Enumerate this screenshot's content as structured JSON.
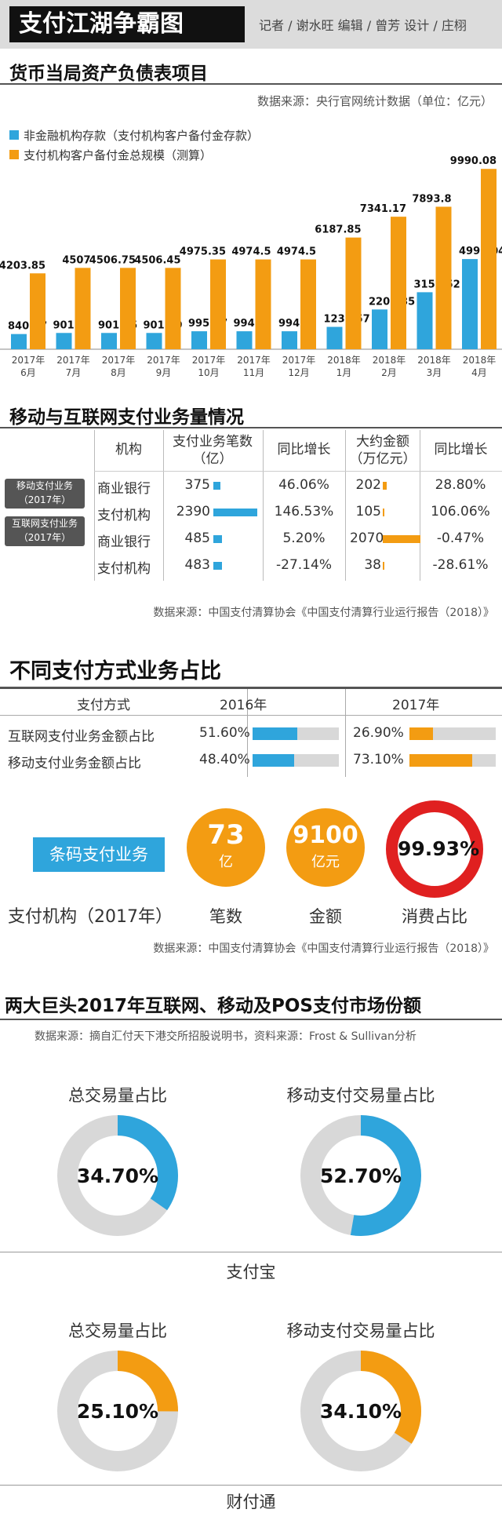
{
  "header": {
    "title": "支付江湖争霸图",
    "credits": "记者 / 谢水旺   编辑 / 曾芳   设计 / 庄栩"
  },
  "section1": {
    "title": "货币当局资产负债表项目",
    "source": "数据来源：央行官网统计数据（单位：亿元）"
  },
  "section2": {
    "title": "移动与互联网支付业务量情况",
    "headers": {
      "org": "机构",
      "count": "支付业务笔数（亿）",
      "count_growth": "同比增长",
      "amount": "大约金额（万亿元）",
      "amount_growth": "同比增长"
    },
    "tags": {
      "mobile": "移动支付业务（2017年）",
      "internet": "互联网支付业务（2017年）"
    },
    "rows": [
      {
        "org": "商业银行",
        "count": "375",
        "count_growth": "46.06%",
        "amount": "202",
        "amount_growth": "28.80%"
      },
      {
        "org": "支付机构",
        "count": "2390",
        "count_growth": "146.53%",
        "amount": "105",
        "amount_growth": "106.06%"
      },
      {
        "org": "商业银行",
        "count": "485",
        "count_growth": "5.20%",
        "amount": "2070",
        "amount_growth": "-0.47%"
      },
      {
        "org": "支付机构",
        "count": "483",
        "count_growth": "-27.14%",
        "amount": "38",
        "amount_growth": "-28.61%"
      }
    ],
    "source": "数据来源：中国支付清算协会《中国支付清算行业运行报告（2018）》"
  },
  "section3": {
    "title": "不同支付方式业务占比",
    "col_header": "支付方式",
    "years": [
      "2016年",
      "2017年"
    ],
    "rows": [
      {
        "label": "互联网支付业务金额占比",
        "v2016": "51.60%",
        "v2017": "26.90%"
      },
      {
        "label": "移动支付业务金额占比",
        "v2016": "48.40%",
        "v2017": "73.10%"
      }
    ],
    "barcode_label": "条码支付业务",
    "org_year_label": "支付机构（2017年）",
    "count_value": "73",
    "count_unit": "亿",
    "count_caption": "笔数",
    "amount_value": "9100",
    "amount_unit": "亿元",
    "amount_caption": "金额",
    "consumption_value": "99.93%",
    "consumption_caption": "消费占比",
    "source": "数据来源：中国支付清算协会《中国支付清算行业运行报告（2018）》"
  },
  "section4": {
    "title": "两大巨头2017年互联网、移动及POS支付市场份额",
    "source": "数据来源：摘自汇付天下港交所招股说明书，资料来源：Frost & Sullivan分析",
    "alipay": {
      "name": "支付宝",
      "total_title": "总交易量占比",
      "total_value": "34.70%",
      "mobile_title": "移动支付交易量占比",
      "mobile_value": "52.70%"
    },
    "tenpay": {
      "name": "财付通",
      "total_title": "总交易量占比",
      "total_value": "25.10%",
      "mobile_title": "移动支付交易量占比",
      "mobile_value": "34.10%"
    }
  },
  "chart_data": [
    {
      "type": "bar",
      "title": "货币当局资产负债表项目",
      "categories": [
        "2017年6月",
        "2017年7月",
        "2017年8月",
        "2017年9月",
        "2017年10月",
        "2017年11月",
        "2017年12月",
        "2018年1月",
        "2018年2月",
        "2018年3月",
        "2018年4月"
      ],
      "series": [
        {
          "name": "非金融机构存款（支付机构客户备付金存款）",
          "color": "#2fa5dc",
          "values": [
            840.77,
            901.4,
            901.35,
            901.29,
            995.07,
            994.9,
            994.9,
            1237.57,
            2202.35,
            3157.52,
            4995.04
          ],
          "labels": [
            "840.77",
            "901.4",
            "901.35",
            "901.29",
            "995.07",
            "994.9",
            "994.9",
            "1237.57",
            "2202.35",
            "3157.52",
            "4995.04"
          ]
        },
        {
          "name": "支付机构客户备付金总规模（测算）",
          "color": "#f39c12",
          "values": [
            4203.85,
            4507,
            4506.75,
            4506.45,
            4975.35,
            4974.5,
            4974.5,
            6187.85,
            7341.17,
            7893.8,
            9990.08
          ],
          "labels": [
            "4203.85",
            "4507",
            "4506.75",
            "4506.45",
            "4975.35",
            "4974.5",
            "4974.5",
            "6187.85",
            "7341.17",
            "7893.8",
            "9990.08"
          ]
        }
      ],
      "ylim": [
        0,
        10000
      ]
    },
    {
      "type": "pie",
      "title": "不同支付方式业务占比",
      "series": [
        {
          "name": "2016年",
          "values": [
            51.6,
            48.4
          ]
        },
        {
          "name": "2017年",
          "values": [
            26.9,
            73.1
          ]
        }
      ],
      "categories": [
        "互联网支付业务金额占比",
        "移动支付业务金额占比"
      ]
    },
    {
      "type": "pie",
      "title": "两大巨头2017年互联网、移动及POS支付市场份额",
      "categories": [
        "支付宝 总交易量占比",
        "支付宝 移动支付交易量占比",
        "财付通 总交易量占比",
        "财付通 移动支付交易量占比"
      ],
      "values": [
        34.7,
        52.7,
        25.1,
        34.1
      ]
    }
  ],
  "colors": {
    "blue": "#2fa5dc",
    "orange": "#f39c12",
    "red": "#e02020",
    "track": "#d8d8d8"
  }
}
